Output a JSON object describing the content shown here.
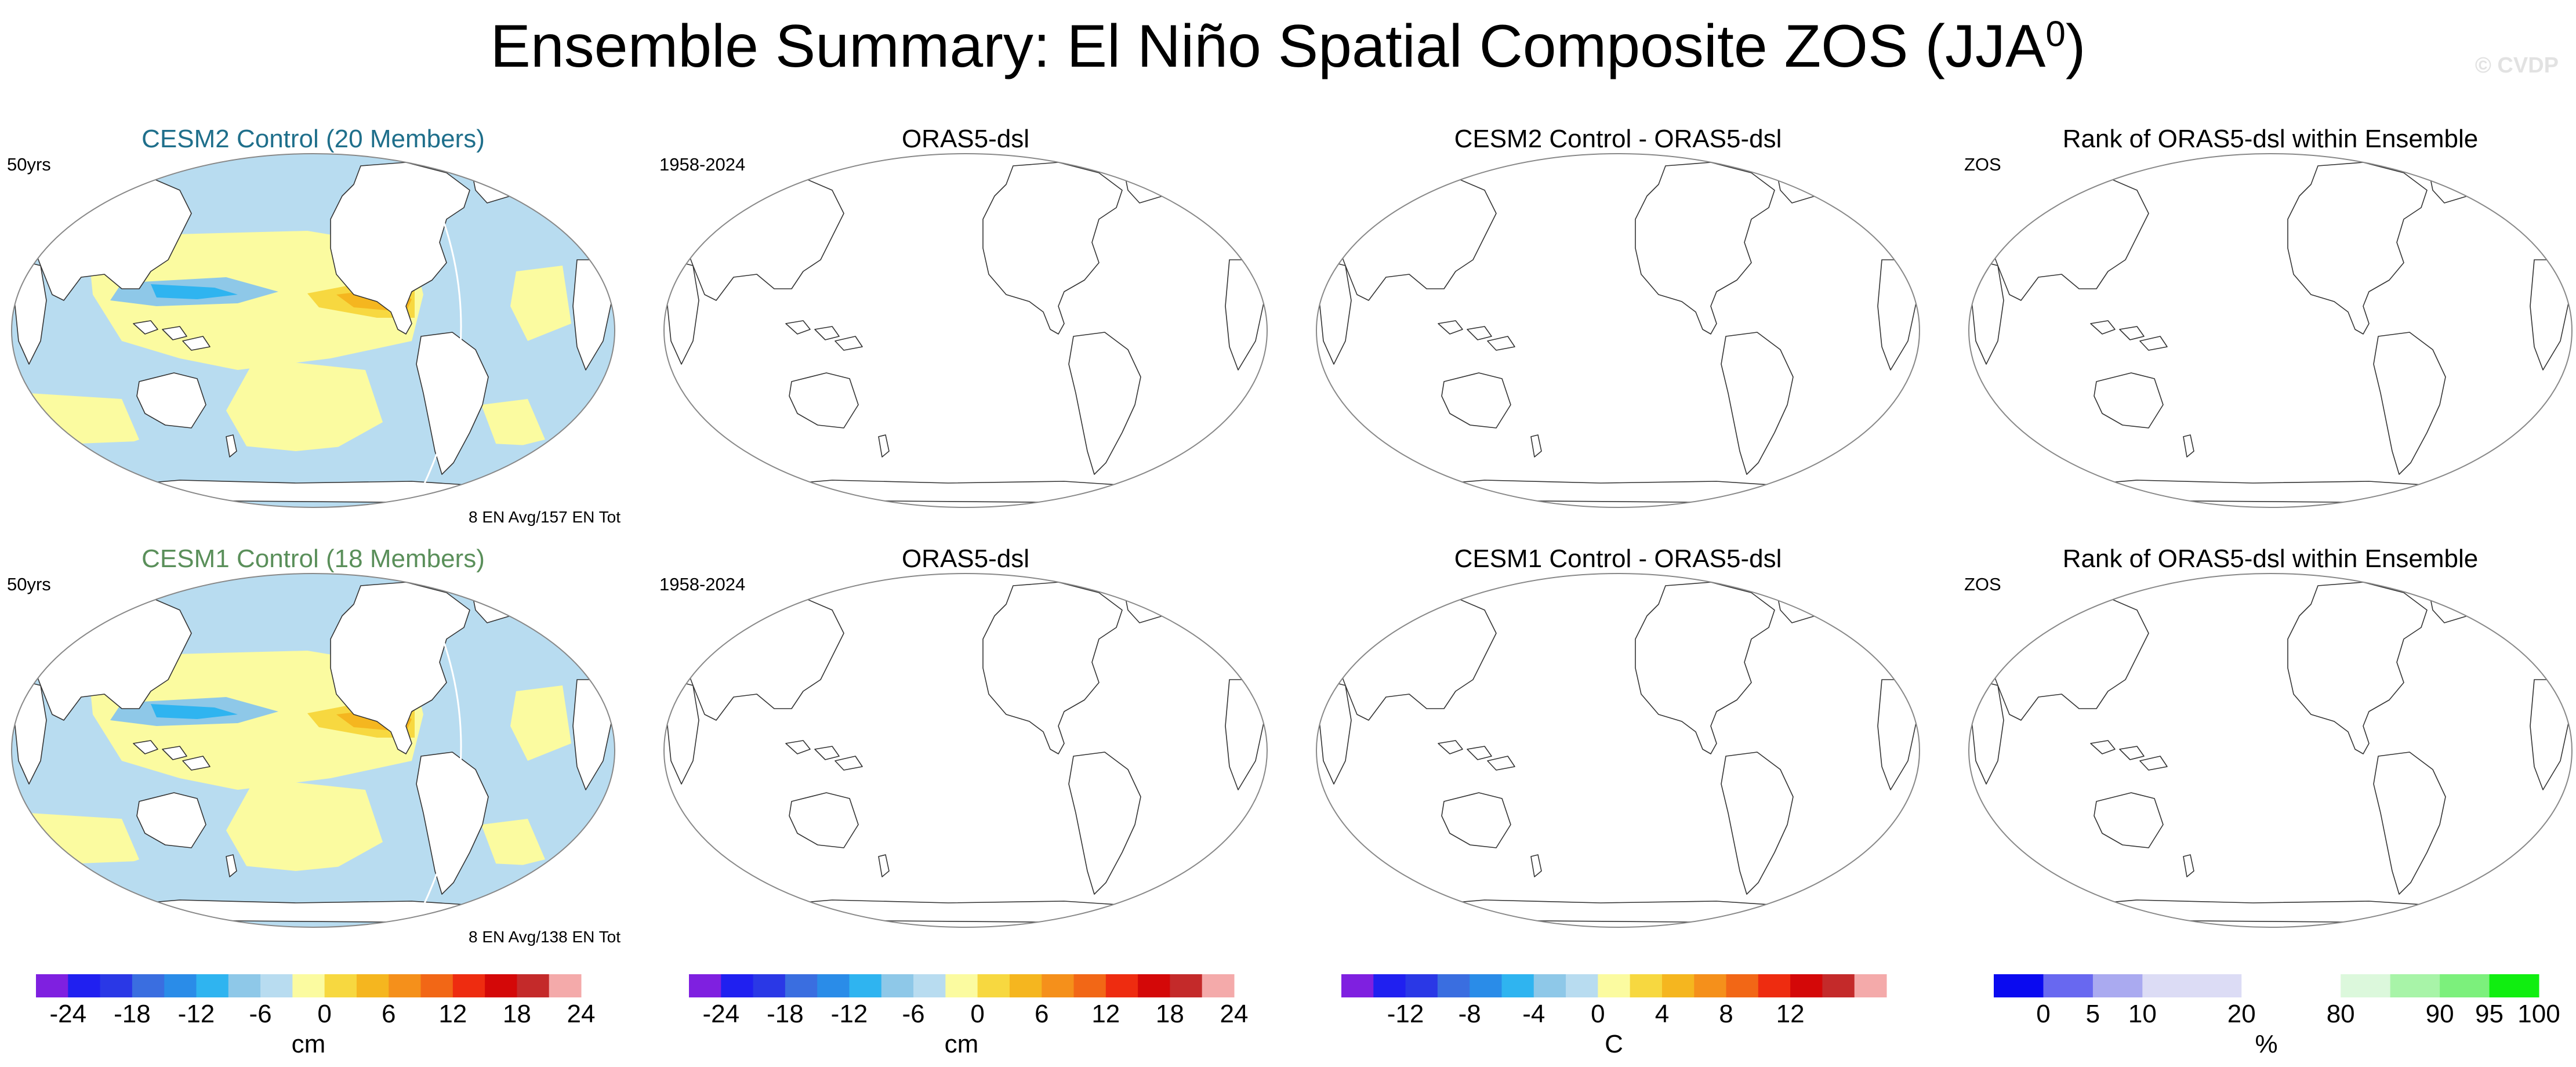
{
  "title": {
    "text": "Ensemble Summary: El Niño Spatial Composite ZOS (JJA",
    "sup": "0",
    "close": ")"
  },
  "watermark": "© CVDP",
  "panels": [
    {
      "title": "CESM2 Control (20 Members)",
      "title_color": "#1f6f8b",
      "left_label": "50yrs",
      "bottom_label": "8 EN Avg/157 EN Tot",
      "filled": true
    },
    {
      "title": "ORAS5-dsl",
      "left_label": "1958-2024",
      "filled": false
    },
    {
      "title": "CESM2 Control - ORAS5-dsl",
      "filled": false
    },
    {
      "title": "Rank of ORAS5-dsl within Ensemble",
      "left_label": "ZOS",
      "filled": false
    },
    {
      "title": "CESM1 Control (18 Members)",
      "title_color": "#5a8f5a",
      "left_label": "50yrs",
      "bottom_label": "8 EN Avg/138 EN Tot",
      "filled": true
    },
    {
      "title": "ORAS5-dsl",
      "left_label": "1958-2024",
      "filled": false
    },
    {
      "title": "CESM1 Control - ORAS5-dsl",
      "filled": false
    },
    {
      "title": "Rank of ORAS5-dsl within Ensemble",
      "left_label": "ZOS",
      "filled": false
    }
  ],
  "colorbars": [
    {
      "unit": "cm",
      "colors": [
        "#7f20e0",
        "#2020f0",
        "#2a38e6",
        "#3a6ee0",
        "#2a8ce8",
        "#2fb4f0",
        "#8ec8e8",
        "#b8dcf0",
        "#fbfba0",
        "#f7d840",
        "#f5b61f",
        "#f5901b",
        "#f26716",
        "#ee2c10",
        "#d40808",
        "#c42a2a",
        "#f4aaaa"
      ],
      "ticks": [
        "-24",
        "-18",
        "-12",
        "-6",
        "0",
        "6",
        "12",
        "18",
        "24"
      ]
    },
    {
      "unit": "cm",
      "colors": [
        "#7f20e0",
        "#2020f0",
        "#2a38e6",
        "#3a6ee0",
        "#2a8ce8",
        "#2fb4f0",
        "#8ec8e8",
        "#b8dcf0",
        "#fbfba0",
        "#f7d840",
        "#f5b61f",
        "#f5901b",
        "#f26716",
        "#ee2c10",
        "#d40808",
        "#c42a2a",
        "#f4aaaa"
      ],
      "ticks": [
        "-24",
        "-18",
        "-12",
        "-6",
        "0",
        "6",
        "12",
        "18",
        "24"
      ]
    },
    {
      "unit": "C",
      "colors": [
        "#7f20e0",
        "#2020f0",
        "#2a38e6",
        "#3a6ee0",
        "#2a8ce8",
        "#2fb4f0",
        "#8ec8e8",
        "#b8dcf0",
        "#fbfba0",
        "#f7d840",
        "#f5b61f",
        "#f5901b",
        "#f26716",
        "#ee2c10",
        "#d40808",
        "#c42a2a",
        "#f4aaaa"
      ],
      "ticks": [
        "-12",
        "-8",
        "-4",
        "0",
        "4",
        "8",
        "12"
      ]
    },
    {
      "unit": "%",
      "colors": [
        "#0a0af0",
        "#6868f0",
        "#aaaaf0",
        "#dcdcf5",
        "#dcdcf5",
        "#ffffff",
        "#ffffff",
        "#dcf8dc",
        "#a8f4a8",
        "#7cf07c",
        "#10ee10"
      ],
      "ticks": [
        "0",
        "5",
        "10",
        "20",
        "80",
        "90",
        "95",
        "100"
      ]
    }
  ],
  "ocean_colors": {
    "neg_weak": "#b8dcf0",
    "neg_mid": "#8ec8e8",
    "neg_strong": "#2fb4f0",
    "pos_weak": "#fbfba0",
    "pos_mid": "#f7d840",
    "pos_strong": "#f5b61f"
  }
}
